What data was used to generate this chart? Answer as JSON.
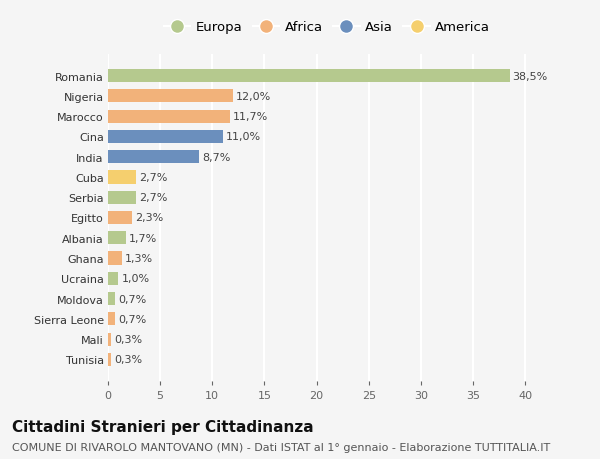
{
  "countries": [
    "Romania",
    "Nigeria",
    "Marocco",
    "Cina",
    "India",
    "Cuba",
    "Serbia",
    "Egitto",
    "Albania",
    "Ghana",
    "Ucraina",
    "Moldova",
    "Sierra Leone",
    "Mali",
    "Tunisia"
  ],
  "values": [
    38.5,
    12.0,
    11.7,
    11.0,
    8.7,
    2.7,
    2.7,
    2.3,
    1.7,
    1.3,
    1.0,
    0.7,
    0.7,
    0.3,
    0.3
  ],
  "labels": [
    "38,5%",
    "12,0%",
    "11,7%",
    "11,0%",
    "8,7%",
    "2,7%",
    "2,7%",
    "2,3%",
    "1,7%",
    "1,3%",
    "1,0%",
    "0,7%",
    "0,7%",
    "0,3%",
    "0,3%"
  ],
  "continents": [
    "Europa",
    "Africa",
    "Africa",
    "Asia",
    "Asia",
    "America",
    "Europa",
    "Africa",
    "Europa",
    "Africa",
    "Europa",
    "Europa",
    "Africa",
    "Africa",
    "Africa"
  ],
  "colors": {
    "Europa": "#b5c98e",
    "Africa": "#f2b27a",
    "Asia": "#6b8fbd",
    "America": "#f5cf6e"
  },
  "legend_order": [
    "Europa",
    "Africa",
    "Asia",
    "America"
  ],
  "xlim": [
    0,
    42
  ],
  "xticks": [
    0,
    5,
    10,
    15,
    20,
    25,
    30,
    35,
    40
  ],
  "title": "Cittadini Stranieri per Cittadinanza",
  "subtitle": "COMUNE DI RIVAROLO MANTOVANO (MN) - Dati ISTAT al 1° gennaio - Elaborazione TUTTITALIA.IT",
  "background_color": "#f5f5f5",
  "grid_color": "#ffffff",
  "bar_height": 0.65,
  "title_fontsize": 11,
  "subtitle_fontsize": 8,
  "label_fontsize": 8,
  "legend_fontsize": 9.5,
  "tick_fontsize": 8
}
